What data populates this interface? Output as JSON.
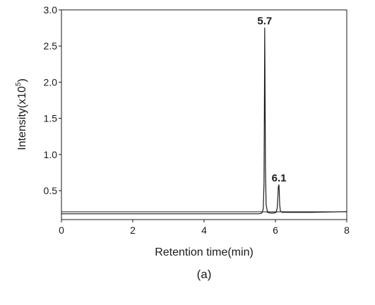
{
  "chart_data": {
    "type": "line",
    "xlabel": "Retention time(min)",
    "ylabel_main": "Intensity(x10",
    "ylabel_sup": "5",
    "ylabel_close": ")",
    "caption": "(a)",
    "xlim": [
      0,
      8
    ],
    "ylim": [
      0.1,
      3.0
    ],
    "x_ticks": [
      0,
      2,
      4,
      6,
      8
    ],
    "x_tick_labels": [
      "0",
      "2",
      "4",
      "6",
      "8"
    ],
    "y_ticks": [
      0.5,
      1.0,
      1.5,
      2.0,
      2.5,
      3.0
    ],
    "y_tick_labels": [
      "0.5",
      "1.0",
      "1.5",
      "2.0",
      "2.5",
      "3.0"
    ],
    "grid": false,
    "series": [
      {
        "x": [
          0.0,
          5.0,
          5.55,
          5.62,
          5.66,
          5.68,
          5.69,
          5.7,
          5.71,
          5.72,
          5.74,
          5.78,
          5.85,
          5.95,
          6.02,
          6.05,
          6.07,
          6.08,
          6.1,
          6.11,
          6.12,
          6.14,
          6.18,
          6.3,
          7.0,
          8.0
        ],
        "y": [
          0.18,
          0.18,
          0.18,
          0.19,
          0.25,
          0.6,
          1.6,
          2.75,
          1.8,
          0.8,
          0.3,
          0.2,
          0.19,
          0.19,
          0.2,
          0.26,
          0.42,
          0.55,
          0.58,
          0.45,
          0.3,
          0.22,
          0.2,
          0.2,
          0.2,
          0.21
        ]
      }
    ],
    "annotations": [
      {
        "text": "5.7",
        "x": 5.7,
        "y": 2.75
      },
      {
        "text": "6.1",
        "x": 6.1,
        "y": 0.58
      }
    ]
  }
}
